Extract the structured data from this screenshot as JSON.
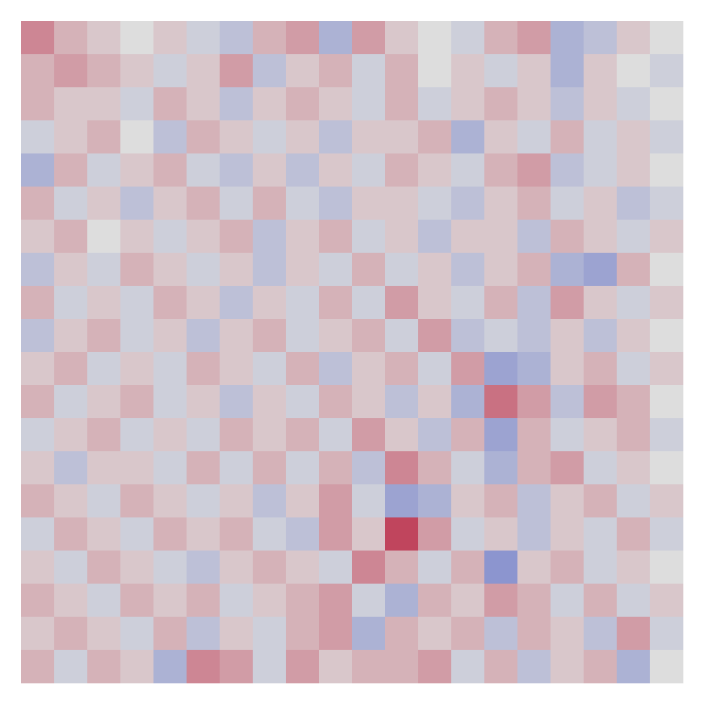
{
  "chart_data": {
    "type": "heatmap",
    "colormap": "coolwarm",
    "zlim": [
      -1,
      1
    ],
    "values": [
      [
        0.4,
        0.2,
        0.1,
        0,
        0.1,
        -0.1,
        -0.2,
        0.2,
        0.3,
        -0.3,
        0.3,
        0.1,
        0,
        -0.1,
        0.2,
        0.3,
        -0.3,
        -0.2,
        0.1,
        0
      ],
      [
        0.2,
        0.3,
        0.2,
        0.1,
        -0.1,
        0.1,
        0.3,
        -0.2,
        0.1,
        0.2,
        -0.1,
        0.2,
        0,
        0.1,
        -0.1,
        0.1,
        -0.3,
        0.1,
        0,
        -0.1
      ],
      [
        0.2,
        0.1,
        0.1,
        -0.1,
        0.2,
        0.1,
        -0.2,
        0.1,
        0.2,
        0.1,
        -0.1,
        0.2,
        -0.1,
        0.1,
        0.2,
        0.1,
        -0.2,
        0.1,
        -0.1,
        0
      ],
      [
        -0.1,
        0.1,
        0.2,
        0,
        -0.2,
        0.2,
        0.1,
        -0.1,
        0.1,
        -0.2,
        0.1,
        0.1,
        0.2,
        -0.3,
        0.1,
        -0.1,
        0.2,
        -0.1,
        0.1,
        -0.1
      ],
      [
        -0.3,
        0.2,
        -0.1,
        0.1,
        0.2,
        -0.1,
        -0.2,
        0.1,
        -0.2,
        0.1,
        -0.1,
        0.2,
        0.1,
        -0.1,
        0.2,
        0.3,
        -0.2,
        -0.1,
        0.1,
        0
      ],
      [
        0.2,
        -0.1,
        0.1,
        -0.2,
        0.1,
        0.2,
        -0.1,
        0.2,
        -0.1,
        -0.2,
        0.1,
        0.1,
        -0.1,
        -0.2,
        0.1,
        0.2,
        -0.1,
        0.1,
        -0.2,
        -0.1
      ],
      [
        0.1,
        0.2,
        0,
        0.1,
        -0.1,
        0.1,
        0.2,
        -0.2,
        0.1,
        0.2,
        -0.1,
        0.1,
        -0.2,
        0.1,
        0.1,
        -0.2,
        0.2,
        0.1,
        -0.1,
        0.1
      ],
      [
        -0.2,
        0.1,
        -0.1,
        0.2,
        0.1,
        -0.1,
        0.1,
        -0.2,
        0.1,
        -0.1,
        0.2,
        -0.1,
        0.1,
        -0.2,
        0.1,
        0.2,
        -0.3,
        -0.4,
        0.2,
        0
      ],
      [
        0.2,
        -0.1,
        0.1,
        -0.1,
        0.2,
        0.1,
        -0.2,
        0.1,
        -0.1,
        0.2,
        -0.1,
        0.3,
        0.1,
        -0.1,
        0.2,
        -0.2,
        0.3,
        0.1,
        -0.1,
        0.1
      ],
      [
        -0.2,
        0.1,
        0.2,
        -0.1,
        0.1,
        -0.2,
        0.1,
        0.2,
        -0.1,
        0.1,
        0.2,
        -0.1,
        0.3,
        -0.2,
        -0.1,
        -0.2,
        0.1,
        -0.2,
        0.1,
        0
      ],
      [
        0.1,
        0.2,
        -0.1,
        0.1,
        -0.1,
        0.2,
        0.1,
        -0.1,
        0.2,
        -0.2,
        0.1,
        0.2,
        -0.1,
        0.3,
        -0.4,
        -0.3,
        0.1,
        0.2,
        -0.1,
        0.1
      ],
      [
        0.2,
        -0.1,
        0.1,
        0.2,
        -0.1,
        0.1,
        -0.2,
        0.1,
        -0.1,
        0.2,
        0.1,
        -0.2,
        0.1,
        -0.3,
        0.5,
        0.3,
        -0.2,
        0.3,
        0.2,
        0
      ],
      [
        -0.1,
        0.1,
        0.2,
        -0.1,
        0.1,
        -0.1,
        0.2,
        0.1,
        0.2,
        -0.1,
        0.3,
        0.1,
        -0.2,
        0.2,
        -0.4,
        0.2,
        -0.1,
        0.1,
        0.2,
        -0.1
      ],
      [
        0.1,
        -0.2,
        0.1,
        0.1,
        -0.1,
        0.2,
        -0.1,
        0.2,
        -0.1,
        0.2,
        -0.2,
        0.4,
        0.2,
        -0.1,
        -0.3,
        0.2,
        0.3,
        -0.1,
        0.1,
        0
      ],
      [
        0.2,
        0.1,
        -0.1,
        0.2,
        0.1,
        -0.1,
        0.1,
        -0.2,
        0.1,
        0.3,
        -0.1,
        -0.4,
        -0.3,
        0.1,
        0.2,
        -0.2,
        0.1,
        0.2,
        -0.1,
        0.1
      ],
      [
        -0.1,
        0.2,
        0.1,
        -0.1,
        0.2,
        0.1,
        0.2,
        -0.1,
        -0.2,
        0.3,
        0.1,
        0.7,
        0.3,
        -0.1,
        0.1,
        -0.2,
        0.1,
        -0.1,
        0.2,
        -0.1
      ],
      [
        0.1,
        -0.1,
        0.2,
        0.1,
        -0.1,
        -0.2,
        0.1,
        0.2,
        0.1,
        -0.1,
        0.4,
        0.2,
        -0.1,
        0.2,
        -0.5,
        0.1,
        0.2,
        -0.1,
        0.1,
        0
      ],
      [
        0.2,
        0.1,
        -0.1,
        0.2,
        0.1,
        0.2,
        -0.1,
        0.1,
        0.2,
        0.3,
        -0.1,
        -0.3,
        0.2,
        0.1,
        0.3,
        0.2,
        -0.1,
        0.2,
        -0.1,
        0.1
      ],
      [
        0.1,
        0.2,
        0.1,
        -0.1,
        0.2,
        -0.2,
        0.1,
        -0.1,
        0.2,
        0.3,
        -0.3,
        0.2,
        0.1,
        0.2,
        -0.2,
        0.2,
        0.1,
        -0.2,
        0.3,
        -0.1
      ],
      [
        0.2,
        -0.1,
        0.2,
        0.1,
        -0.3,
        0.4,
        0.3,
        -0.1,
        0.3,
        0.1,
        0.2,
        0.2,
        0.3,
        -0.1,
        0.2,
        -0.2,
        0.1,
        0.2,
        -0.3,
        0
      ]
    ]
  }
}
